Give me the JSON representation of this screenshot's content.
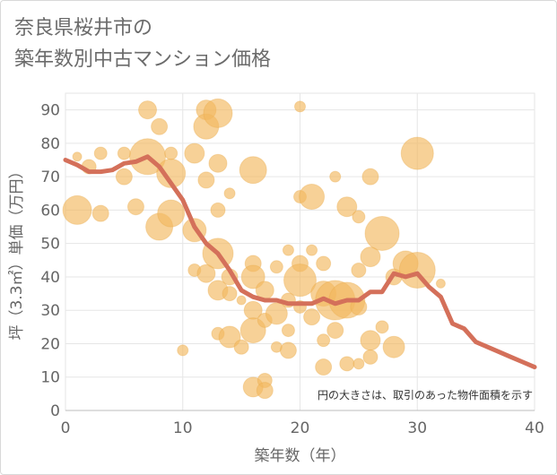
{
  "title_lines": [
    "奈良県桜井市の",
    "築年数別中古マンション価格"
  ],
  "chart_data": {
    "type": "scatter",
    "xlabel": "築年数（年）",
    "ylabel": "坪（3.3㎡）単価（万円）",
    "xlim": [
      0,
      40
    ],
    "ylim": [
      0,
      95
    ],
    "x_ticks": [
      "0",
      "10",
      "20",
      "30",
      "40"
    ],
    "y_ticks": [
      "0",
      "10",
      "20",
      "30",
      "40",
      "50",
      "60",
      "70",
      "80",
      "90"
    ],
    "annotation": "円の大きさは、取引のあった物件面積を示す",
    "colors": {
      "bubble": "#f2b860",
      "line": "#d4705a",
      "grid": "#e6e6e6",
      "axis_text": "#666666"
    },
    "line": {
      "x": [
        0,
        1,
        2,
        3,
        4,
        5,
        6,
        7,
        8,
        9,
        10,
        11,
        12,
        13,
        14,
        15,
        16,
        17,
        18,
        19,
        20,
        21,
        22,
        23,
        24,
        25,
        26,
        27,
        28,
        29,
        30,
        31,
        32,
        33,
        34,
        35,
        36,
        37,
        38,
        39,
        40
      ],
      "y": [
        75,
        73.5,
        71.5,
        71.5,
        72,
        74,
        74.5,
        76,
        73,
        68,
        63,
        55,
        50,
        47,
        42,
        36,
        34,
        33,
        33,
        32,
        32,
        32,
        33.5,
        32,
        33,
        33,
        35.5,
        35.5,
        41,
        40,
        41,
        37,
        34,
        26,
        24.5,
        20.5,
        19,
        17.5,
        16,
        14.5,
        13
      ]
    },
    "bubbles": [
      {
        "x": 1,
        "y": 60,
        "r": 16
      },
      {
        "x": 1,
        "y": 76,
        "r": 5
      },
      {
        "x": 2,
        "y": 73,
        "r": 8
      },
      {
        "x": 3,
        "y": 77,
        "r": 7
      },
      {
        "x": 3,
        "y": 59,
        "r": 9
      },
      {
        "x": 5,
        "y": 77,
        "r": 7
      },
      {
        "x": 5,
        "y": 70,
        "r": 9
      },
      {
        "x": 6,
        "y": 61,
        "r": 9
      },
      {
        "x": 7,
        "y": 90,
        "r": 10
      },
      {
        "x": 7,
        "y": 76,
        "r": 20
      },
      {
        "x": 8,
        "y": 85,
        "r": 9
      },
      {
        "x": 8,
        "y": 55,
        "r": 15
      },
      {
        "x": 9,
        "y": 71,
        "r": 16
      },
      {
        "x": 9,
        "y": 59,
        "r": 15
      },
      {
        "x": 9,
        "y": 77,
        "r": 7
      },
      {
        "x": 10,
        "y": 18,
        "r": 6
      },
      {
        "x": 11,
        "y": 77,
        "r": 11
      },
      {
        "x": 11,
        "y": 54,
        "r": 13
      },
      {
        "x": 11,
        "y": 42,
        "r": 7
      },
      {
        "x": 12,
        "y": 90,
        "r": 11
      },
      {
        "x": 12,
        "y": 85,
        "r": 14
      },
      {
        "x": 12,
        "y": 69,
        "r": 9
      },
      {
        "x": 12,
        "y": 41,
        "r": 10
      },
      {
        "x": 13,
        "y": 89,
        "r": 16
      },
      {
        "x": 13,
        "y": 74,
        "r": 10
      },
      {
        "x": 13,
        "y": 60,
        "r": 8
      },
      {
        "x": 13,
        "y": 47,
        "r": 17
      },
      {
        "x": 13,
        "y": 36,
        "r": 11
      },
      {
        "x": 13,
        "y": 23,
        "r": 7
      },
      {
        "x": 14,
        "y": 65,
        "r": 6
      },
      {
        "x": 14,
        "y": 40,
        "r": 9
      },
      {
        "x": 14,
        "y": 35,
        "r": 8
      },
      {
        "x": 14,
        "y": 22,
        "r": 12
      },
      {
        "x": 15,
        "y": 33,
        "r": 5
      },
      {
        "x": 15,
        "y": 19,
        "r": 8
      },
      {
        "x": 16,
        "y": 72,
        "r": 15
      },
      {
        "x": 16,
        "y": 44,
        "r": 9
      },
      {
        "x": 16,
        "y": 40,
        "r": 13
      },
      {
        "x": 16,
        "y": 30,
        "r": 10
      },
      {
        "x": 16,
        "y": 24,
        "r": 14
      },
      {
        "x": 16,
        "y": 7,
        "r": 11
      },
      {
        "x": 17,
        "y": 36,
        "r": 10
      },
      {
        "x": 17,
        "y": 27,
        "r": 8
      },
      {
        "x": 17,
        "y": 9,
        "r": 8
      },
      {
        "x": 17,
        "y": 6,
        "r": 9
      },
      {
        "x": 18,
        "y": 43,
        "r": 7
      },
      {
        "x": 18,
        "y": 29,
        "r": 12
      },
      {
        "x": 18,
        "y": 19,
        "r": 6
      },
      {
        "x": 19,
        "y": 48,
        "r": 6
      },
      {
        "x": 19,
        "y": 33,
        "r": 8
      },
      {
        "x": 19,
        "y": 24,
        "r": 7
      },
      {
        "x": 19,
        "y": 18,
        "r": 9
      },
      {
        "x": 20,
        "y": 91,
        "r": 6
      },
      {
        "x": 20,
        "y": 64,
        "r": 7
      },
      {
        "x": 20,
        "y": 44,
        "r": 9
      },
      {
        "x": 20,
        "y": 39,
        "r": 18
      },
      {
        "x": 20,
        "y": 31,
        "r": 7
      },
      {
        "x": 21,
        "y": 64,
        "r": 14
      },
      {
        "x": 21,
        "y": 48,
        "r": 6
      },
      {
        "x": 21,
        "y": 28,
        "r": 9
      },
      {
        "x": 22,
        "y": 44,
        "r": 8
      },
      {
        "x": 22,
        "y": 35,
        "r": 14
      },
      {
        "x": 22,
        "y": 21,
        "r": 7
      },
      {
        "x": 22,
        "y": 13,
        "r": 9
      },
      {
        "x": 23,
        "y": 70,
        "r": 6
      },
      {
        "x": 23,
        "y": 33,
        "r": 22
      },
      {
        "x": 23,
        "y": 24,
        "r": 9
      },
      {
        "x": 24,
        "y": 61,
        "r": 11
      },
      {
        "x": 24,
        "y": 33,
        "r": 20
      },
      {
        "x": 24,
        "y": 14,
        "r": 8
      },
      {
        "x": 25,
        "y": 58,
        "r": 7
      },
      {
        "x": 25,
        "y": 42,
        "r": 8
      },
      {
        "x": 25,
        "y": 31,
        "r": 9
      },
      {
        "x": 25,
        "y": 14,
        "r": 6
      },
      {
        "x": 26,
        "y": 70,
        "r": 9
      },
      {
        "x": 26,
        "y": 46,
        "r": 11
      },
      {
        "x": 26,
        "y": 21,
        "r": 11
      },
      {
        "x": 26,
        "y": 16,
        "r": 8
      },
      {
        "x": 27,
        "y": 53,
        "r": 19
      },
      {
        "x": 27,
        "y": 25,
        "r": 7
      },
      {
        "x": 28,
        "y": 19,
        "r": 12
      },
      {
        "x": 28,
        "y": 40,
        "r": 9
      },
      {
        "x": 29,
        "y": 44,
        "r": 14
      },
      {
        "x": 30,
        "y": 77,
        "r": 18
      },
      {
        "x": 30,
        "y": 42,
        "r": 20
      },
      {
        "x": 32,
        "y": 38,
        "r": 5
      }
    ]
  }
}
